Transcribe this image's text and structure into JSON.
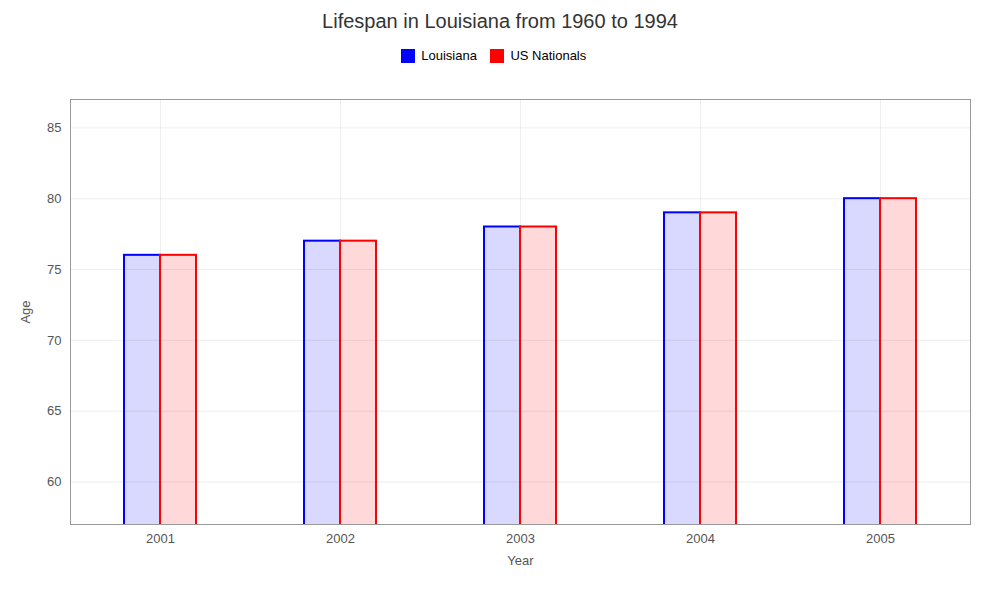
{
  "chart_data": {
    "type": "bar",
    "title": "Lifespan in Louisiana from 1960 to 1994",
    "xlabel": "Year",
    "ylabel": "Age",
    "categories": [
      "2001",
      "2002",
      "2003",
      "2004",
      "2005"
    ],
    "series": [
      {
        "name": "Louisiana",
        "color": "#0000ff",
        "values": [
          76,
          77,
          78,
          79,
          80
        ]
      },
      {
        "name": "US Nationals",
        "color": "#ff0000",
        "values": [
          76,
          77,
          78,
          79,
          80
        ]
      }
    ],
    "ylim": [
      57,
      87
    ],
    "yticks": [
      60,
      65,
      70,
      75,
      80,
      85
    ],
    "grid": true,
    "legend": "top"
  }
}
